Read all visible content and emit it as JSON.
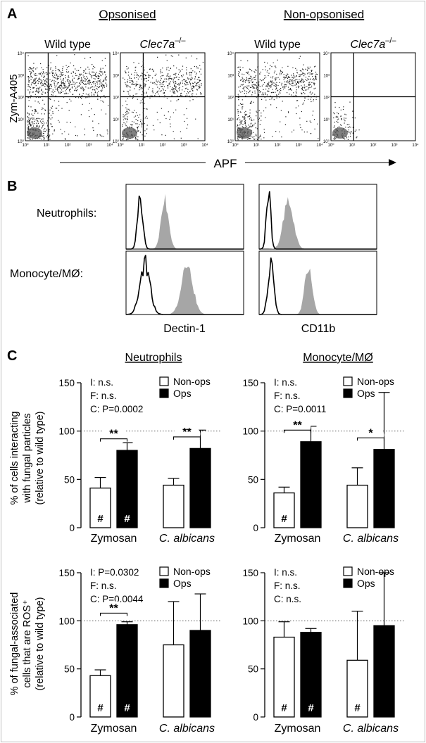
{
  "panelA": {
    "letter": "A",
    "group_labels": [
      "Opsonised",
      "Non-opsonised"
    ],
    "plot_titles": [
      "Wild type",
      "Clec7a",
      "Wild type",
      "Clec7a"
    ],
    "knockout_superscript": "–/–",
    "y_axis_label": "Zym-A405",
    "x_axis_label": "APF",
    "ticks": [
      "10⁰",
      "10¹",
      "10²",
      "10³",
      "10⁴"
    ]
  },
  "panelB": {
    "letter": "B",
    "row_labels": [
      "Neutrophils:",
      "Monocyte/MØ:"
    ],
    "column_labels": [
      "Dectin-1",
      "CD11b"
    ]
  },
  "panelC": {
    "letter": "C",
    "column_titles": [
      "Neutrophils",
      "Monocyte/MØ"
    ],
    "row1_ylabel": [
      "% of cells interacting",
      "with fungal particles",
      "(relative to wild type)"
    ],
    "row2_ylabel": [
      "% of fungal-associated",
      "cells that are ROS⁺",
      "(relative to wild type)"
    ],
    "legend": [
      "Non-ops",
      "Ops"
    ],
    "significance_mark": "#"
  },
  "chart_data": [
    {
      "type": "bar",
      "title": "Neutrophils",
      "categories": [
        "Zymosan",
        "C. albicans"
      ],
      "ylim": [
        0,
        150
      ],
      "yticks": [
        0,
        50,
        100,
        150
      ],
      "reference_line": 100,
      "stats": [
        "I: n.s.",
        "F: n.s.",
        "C: P=0.0002"
      ],
      "series": [
        {
          "name": "Non-ops",
          "values": [
            41,
            44
          ],
          "errors": [
            11,
            7
          ],
          "marks": [
            "#",
            ""
          ]
        },
        {
          "name": "Ops",
          "values": [
            80,
            82
          ],
          "errors": [
            8,
            19
          ],
          "marks": [
            "#",
            ""
          ]
        }
      ],
      "comparisons": [
        {
          "category": 0,
          "label": "**"
        },
        {
          "category": 1,
          "label": "**"
        }
      ]
    },
    {
      "type": "bar",
      "title": "Monocyte/MØ",
      "categories": [
        "Zymosan",
        "C. albicans"
      ],
      "ylim": [
        0,
        150
      ],
      "yticks": [
        0,
        50,
        100,
        150
      ],
      "reference_line": 100,
      "stats": [
        "I: n.s.",
        "F: n.s.",
        "C: P=0.0011"
      ],
      "series": [
        {
          "name": "Non-ops",
          "values": [
            36,
            44
          ],
          "errors": [
            6,
            18
          ],
          "marks": [
            "#",
            ""
          ]
        },
        {
          "name": "Ops",
          "values": [
            89,
            81
          ],
          "errors": [
            16,
            59
          ],
          "marks": [
            "",
            ""
          ]
        }
      ],
      "comparisons": [
        {
          "category": 0,
          "label": "**"
        },
        {
          "category": 1,
          "label": "*"
        }
      ]
    },
    {
      "type": "bar",
      "title": "",
      "categories": [
        "Zymosan",
        "C. albicans"
      ],
      "ylim": [
        0,
        150
      ],
      "yticks": [
        0,
        50,
        100,
        150
      ],
      "reference_line": 100,
      "stats": [
        "I: P=0.0302",
        "F: n.s.",
        "C: P=0.0044"
      ],
      "series": [
        {
          "name": "Non-ops",
          "values": [
            43,
            75
          ],
          "errors": [
            6,
            45
          ],
          "marks": [
            "#",
            ""
          ]
        },
        {
          "name": "Ops",
          "values": [
            96,
            90
          ],
          "errors": [
            3,
            38
          ],
          "marks": [
            "#",
            ""
          ]
        }
      ],
      "comparisons": [
        {
          "category": 0,
          "label": "**"
        }
      ]
    },
    {
      "type": "bar",
      "title": "",
      "categories": [
        "Zymosan",
        "C. albicans"
      ],
      "ylim": [
        0,
        150
      ],
      "yticks": [
        0,
        50,
        100,
        150
      ],
      "reference_line": 100,
      "stats": [
        "I: n.s.",
        "F: n.s.",
        "C: n.s."
      ],
      "series": [
        {
          "name": "Non-ops",
          "values": [
            83,
            59
          ],
          "errors": [
            16,
            51
          ],
          "marks": [
            "#",
            "#"
          ]
        },
        {
          "name": "Ops",
          "values": [
            88,
            95
          ],
          "errors": [
            4,
            55
          ],
          "marks": [
            "#",
            ""
          ]
        }
      ],
      "comparisons": []
    }
  ]
}
